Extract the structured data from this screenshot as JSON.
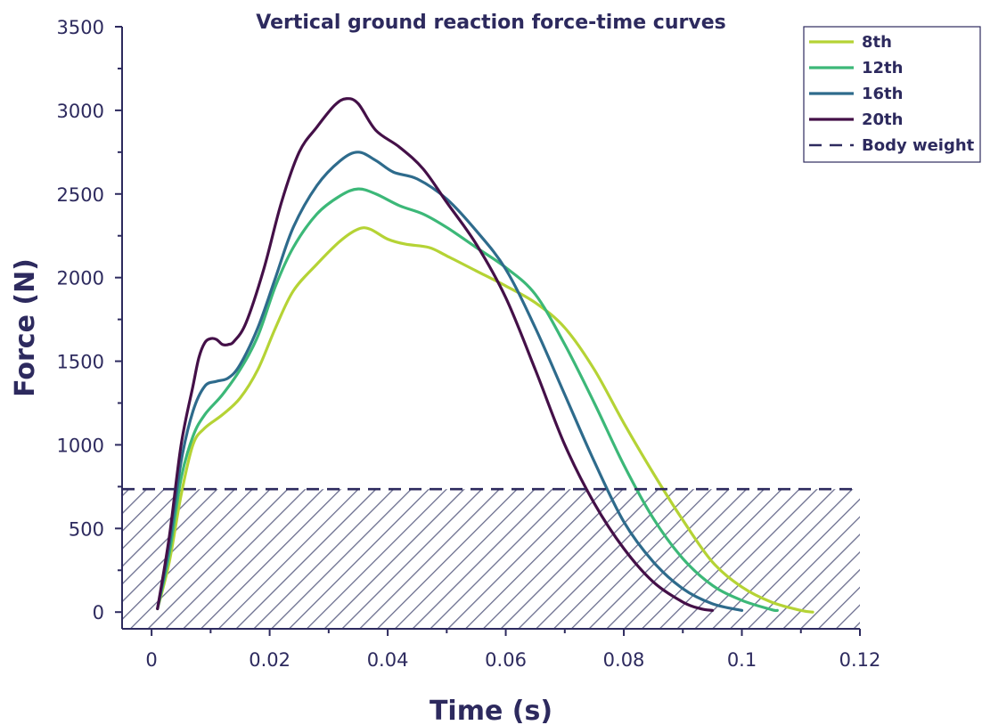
{
  "chart_data": {
    "type": "line",
    "title": "Vertical ground reaction force-time curves",
    "xlabel": "Time (s)",
    "ylabel": "Force (N)",
    "xlim": [
      -0.005,
      0.12
    ],
    "ylim": [
      -100,
      3500
    ],
    "x_ticks": [
      0,
      0.02,
      0.04,
      0.06,
      0.08,
      0.1,
      0.12
    ],
    "x_tick_labels": [
      "0",
      "0.02",
      "0.04",
      "0.06",
      "0.08",
      "0.1",
      "0.12"
    ],
    "y_ticks": [
      0,
      500,
      1000,
      1500,
      2000,
      2500,
      3000,
      3500
    ],
    "y_tick_labels": [
      "0",
      "500",
      "1000",
      "1500",
      "2000",
      "2500",
      "3000",
      "3500"
    ],
    "legend_position": "top-right",
    "grid": false,
    "series": [
      {
        "name": "8th",
        "color": "#b5d335",
        "points": [
          [
            0.001,
            20
          ],
          [
            0.003,
            300
          ],
          [
            0.005,
            700
          ],
          [
            0.007,
            1000
          ],
          [
            0.009,
            1100
          ],
          [
            0.012,
            1180
          ],
          [
            0.015,
            1280
          ],
          [
            0.018,
            1450
          ],
          [
            0.021,
            1700
          ],
          [
            0.024,
            1920
          ],
          [
            0.028,
            2080
          ],
          [
            0.032,
            2220
          ],
          [
            0.035,
            2290
          ],
          [
            0.037,
            2290
          ],
          [
            0.04,
            2230
          ],
          [
            0.043,
            2200
          ],
          [
            0.047,
            2180
          ],
          [
            0.05,
            2130
          ],
          [
            0.055,
            2040
          ],
          [
            0.06,
            1950
          ],
          [
            0.065,
            1850
          ],
          [
            0.07,
            1700
          ],
          [
            0.075,
            1450
          ],
          [
            0.08,
            1130
          ],
          [
            0.085,
            830
          ],
          [
            0.09,
            550
          ],
          [
            0.095,
            300
          ],
          [
            0.1,
            150
          ],
          [
            0.105,
            60
          ],
          [
            0.11,
            10
          ],
          [
            0.112,
            0
          ]
        ]
      },
      {
        "name": "12th",
        "color": "#3cb878",
        "points": [
          [
            0.001,
            20
          ],
          [
            0.003,
            350
          ],
          [
            0.005,
            800
          ],
          [
            0.007,
            1050
          ],
          [
            0.009,
            1180
          ],
          [
            0.012,
            1300
          ],
          [
            0.015,
            1450
          ],
          [
            0.018,
            1650
          ],
          [
            0.021,
            1950
          ],
          [
            0.024,
            2180
          ],
          [
            0.028,
            2380
          ],
          [
            0.032,
            2490
          ],
          [
            0.035,
            2530
          ],
          [
            0.038,
            2500
          ],
          [
            0.042,
            2430
          ],
          [
            0.046,
            2380
          ],
          [
            0.05,
            2300
          ],
          [
            0.055,
            2180
          ],
          [
            0.06,
            2060
          ],
          [
            0.065,
            1900
          ],
          [
            0.07,
            1600
          ],
          [
            0.075,
            1250
          ],
          [
            0.08,
            880
          ],
          [
            0.085,
            560
          ],
          [
            0.09,
            320
          ],
          [
            0.095,
            160
          ],
          [
            0.1,
            70
          ],
          [
            0.105,
            15
          ],
          [
            0.106,
            10
          ]
        ]
      },
      {
        "name": "16th",
        "color": "#2e6b8c",
        "points": [
          [
            0.001,
            20
          ],
          [
            0.003,
            400
          ],
          [
            0.005,
            900
          ],
          [
            0.007,
            1200
          ],
          [
            0.009,
            1350
          ],
          [
            0.011,
            1380
          ],
          [
            0.013,
            1400
          ],
          [
            0.015,
            1480
          ],
          [
            0.018,
            1700
          ],
          [
            0.021,
            2000
          ],
          [
            0.024,
            2300
          ],
          [
            0.028,
            2550
          ],
          [
            0.032,
            2700
          ],
          [
            0.035,
            2750
          ],
          [
            0.038,
            2700
          ],
          [
            0.041,
            2630
          ],
          [
            0.045,
            2590
          ],
          [
            0.05,
            2470
          ],
          [
            0.055,
            2280
          ],
          [
            0.06,
            2050
          ],
          [
            0.065,
            1700
          ],
          [
            0.07,
            1300
          ],
          [
            0.075,
            900
          ],
          [
            0.08,
            540
          ],
          [
            0.085,
            300
          ],
          [
            0.09,
            140
          ],
          [
            0.095,
            50
          ],
          [
            0.1,
            10
          ]
        ]
      },
      {
        "name": "20th",
        "color": "#441048",
        "points": [
          [
            0.001,
            20
          ],
          [
            0.003,
            450
          ],
          [
            0.005,
            1000
          ],
          [
            0.007,
            1350
          ],
          [
            0.008,
            1520
          ],
          [
            0.009,
            1610
          ],
          [
            0.01,
            1635
          ],
          [
            0.011,
            1630
          ],
          [
            0.012,
            1600
          ],
          [
            0.013,
            1600
          ],
          [
            0.014,
            1620
          ],
          [
            0.016,
            1730
          ],
          [
            0.019,
            2050
          ],
          [
            0.022,
            2450
          ],
          [
            0.025,
            2750
          ],
          [
            0.028,
            2900
          ],
          [
            0.031,
            3030
          ],
          [
            0.033,
            3070
          ],
          [
            0.035,
            3040
          ],
          [
            0.038,
            2880
          ],
          [
            0.042,
            2780
          ],
          [
            0.046,
            2650
          ],
          [
            0.05,
            2450
          ],
          [
            0.055,
            2200
          ],
          [
            0.06,
            1880
          ],
          [
            0.065,
            1450
          ],
          [
            0.07,
            1000
          ],
          [
            0.075,
            650
          ],
          [
            0.08,
            380
          ],
          [
            0.085,
            180
          ],
          [
            0.09,
            60
          ],
          [
            0.093,
            20
          ],
          [
            0.095,
            10
          ]
        ]
      }
    ],
    "reference_line": {
      "name": "Body weight",
      "y": 735,
      "color": "#2d2a5e",
      "style": "dashed",
      "hatched_fill_below": true
    }
  }
}
